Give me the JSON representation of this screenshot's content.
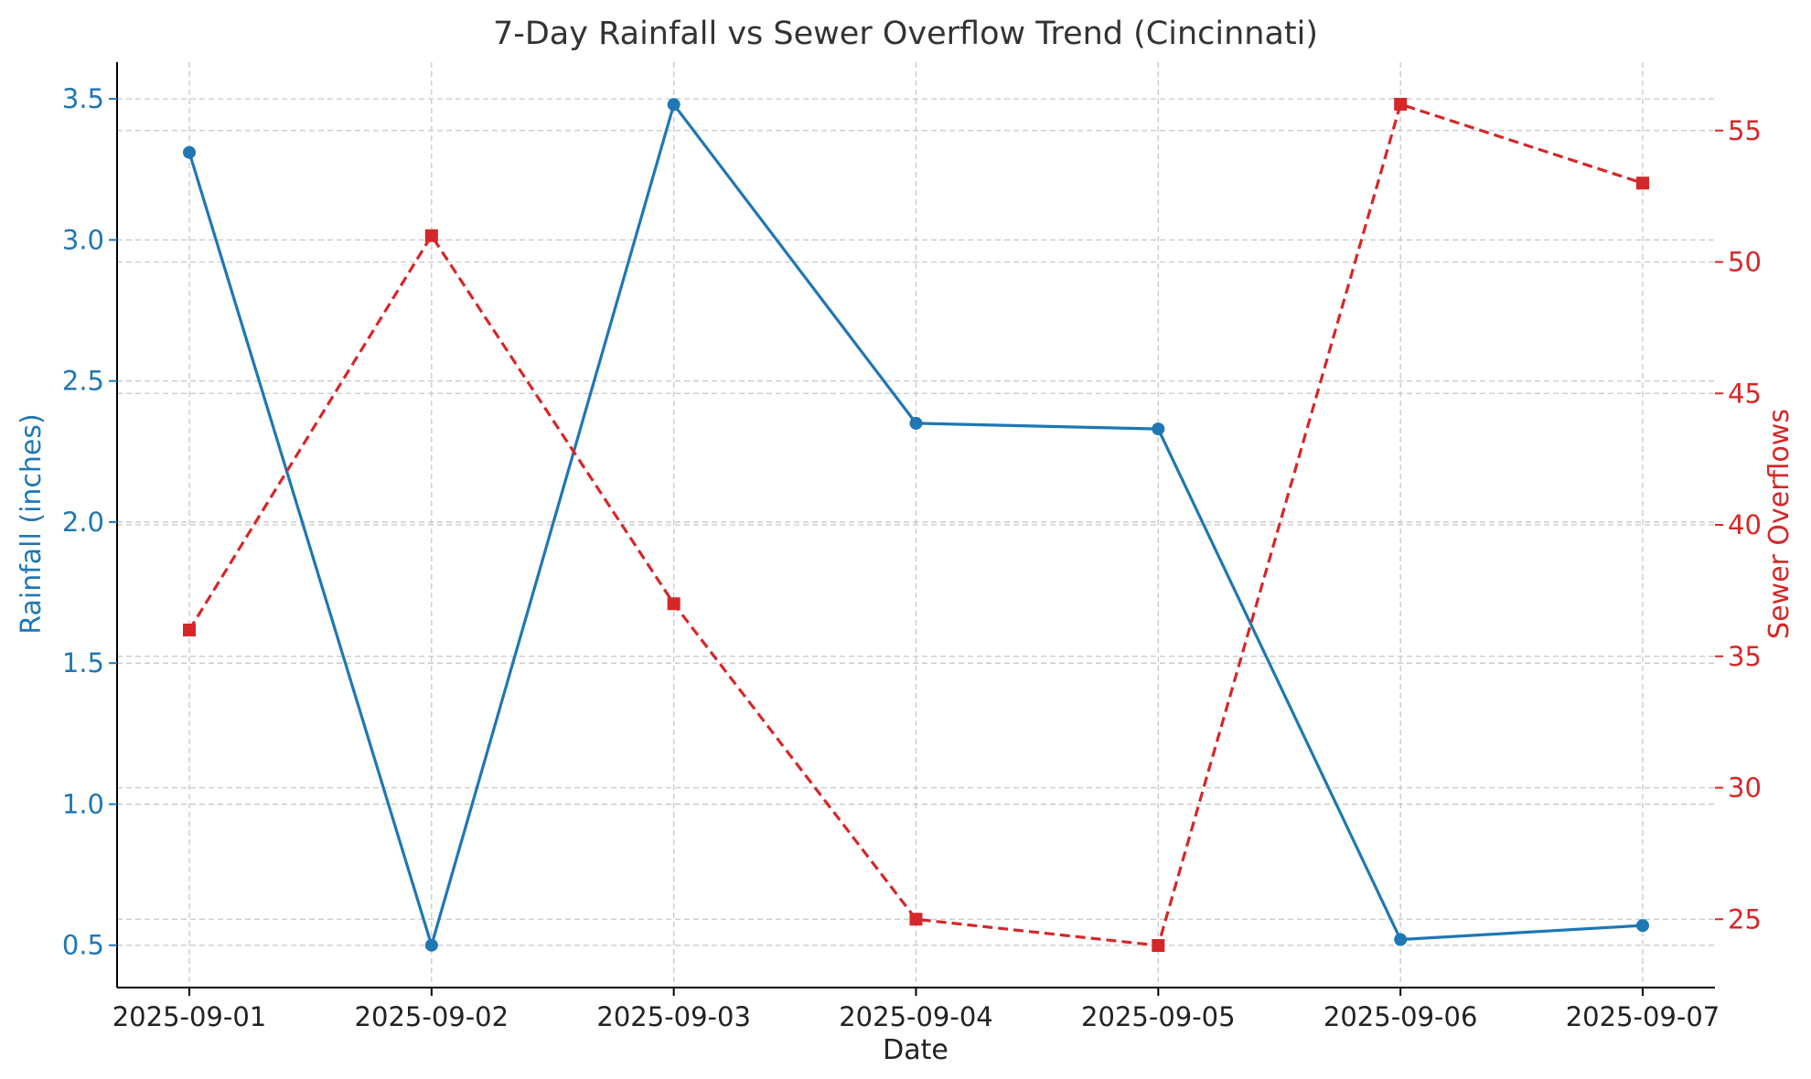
{
  "chart_data": {
    "type": "line",
    "title": "7-Day Rainfall vs Sewer Overflow Trend (Cincinnati)",
    "xlabel": "Date",
    "ylabel_left": "Rainfall (inches)",
    "ylabel_right": "Sewer Overflows",
    "categories": [
      "2025-09-01",
      "2025-09-02",
      "2025-09-03",
      "2025-09-04",
      "2025-09-05",
      "2025-09-06",
      "2025-09-07"
    ],
    "left_axis": {
      "range": [
        0.35,
        3.63
      ],
      "ticks": [
        0.5,
        1.0,
        1.5,
        2.0,
        2.5,
        3.0,
        3.5
      ],
      "tick_labels": [
        "0.5",
        "1.0",
        "1.5",
        "2.0",
        "2.5",
        "3.0",
        "3.5"
      ]
    },
    "right_axis": {
      "range": [
        22.4,
        57.6
      ],
      "ticks": [
        25,
        30,
        35,
        40,
        45,
        50,
        55
      ],
      "tick_labels": [
        "25",
        "30",
        "35",
        "40",
        "45",
        "50",
        "55"
      ]
    },
    "grid": true,
    "series": [
      {
        "name": "Rainfall (inches)",
        "axis": "left",
        "color": "#1f77b4",
        "marker": "circle",
        "linestyle": "solid",
        "values": [
          3.31,
          0.5,
          3.48,
          2.35,
          2.33,
          0.52,
          0.57
        ]
      },
      {
        "name": "Sewer Overflows",
        "axis": "right",
        "color": "#d62728",
        "marker": "square",
        "linestyle": "dashed",
        "values": [
          36,
          51,
          37,
          25,
          24,
          56,
          53
        ]
      }
    ]
  }
}
